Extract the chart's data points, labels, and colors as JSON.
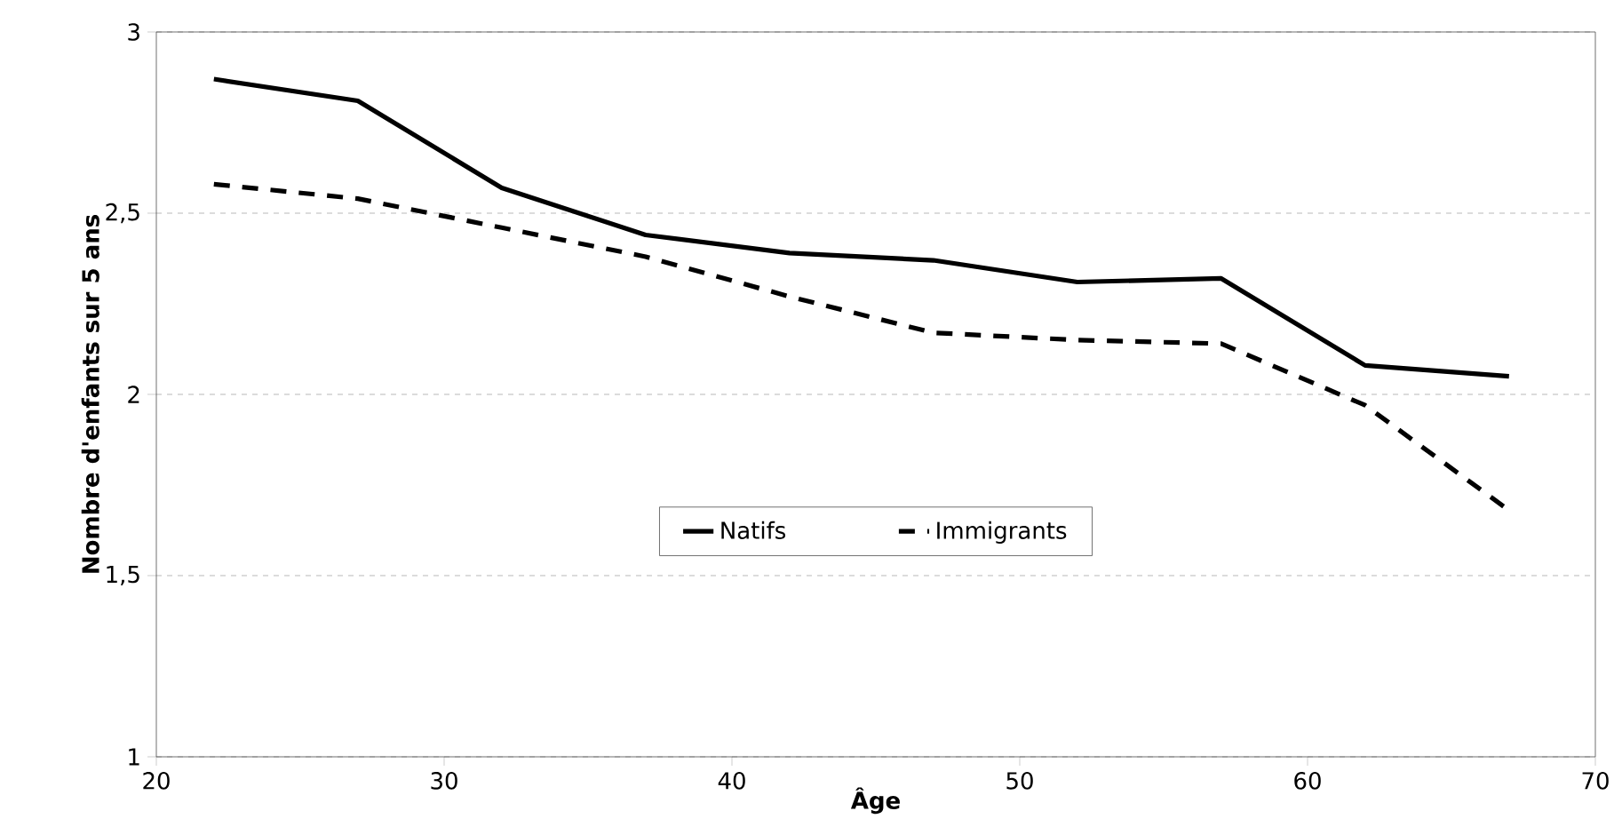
{
  "chart_data": {
    "type": "line",
    "xlabel": "Âge",
    "ylabel": "Nombre d'enfants sur 5 ans",
    "x": [
      22,
      27,
      32,
      37,
      42,
      47,
      52,
      57,
      62,
      67
    ],
    "series": [
      {
        "name": "Natifs",
        "color": "#000000",
        "line_style": "solid",
        "values": [
          2.87,
          2.81,
          2.57,
          2.44,
          2.39,
          2.37,
          2.31,
          2.32,
          2.08,
          2.05
        ]
      },
      {
        "name": "Immigrants",
        "color": "#000000",
        "line_style": "dashed",
        "values": [
          2.58,
          2.54,
          2.46,
          2.38,
          2.27,
          2.17,
          2.15,
          2.14,
          1.97,
          1.68
        ]
      }
    ],
    "xlim": [
      20,
      70
    ],
    "xticks": [
      20,
      30,
      40,
      50,
      60,
      70
    ],
    "ylim": [
      1,
      3
    ],
    "yticks": [
      1,
      {
        "value": 1.5,
        "label": "1,5"
      },
      2,
      {
        "value": 2.5,
        "label": "2,5"
      },
      3
    ],
    "grid": "y",
    "legend": "bottom",
    "marker": "none"
  }
}
